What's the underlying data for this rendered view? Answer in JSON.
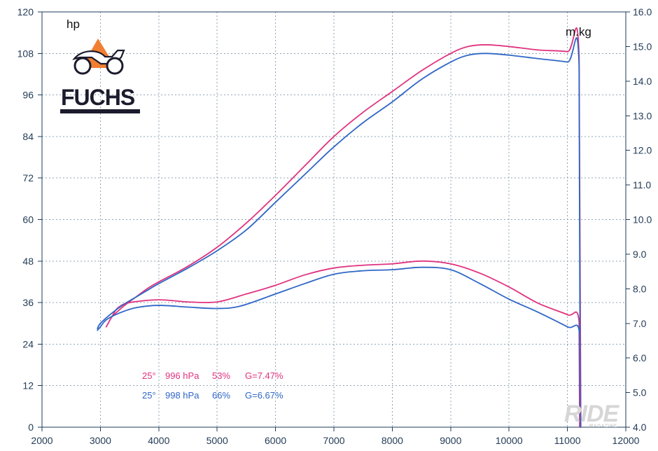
{
  "chart_data": {
    "type": "line",
    "title": "",
    "xlabel": "",
    "ylabel": "hp",
    "y2label": "m.kg",
    "xlim": [
      2000,
      12000
    ],
    "ylim": [
      0,
      120
    ],
    "y2lim": [
      4.0,
      16.0
    ],
    "grid": true,
    "x_ticks": [
      "2000",
      "3000",
      "4000",
      "5000",
      "6000",
      "7000",
      "8000",
      "9000",
      "10000",
      "11000",
      "12000"
    ],
    "y_ticks": [
      "0",
      "12",
      "24",
      "36",
      "48",
      "60",
      "72",
      "84",
      "96",
      "108",
      "120"
    ],
    "y2_ticks": [
      "4.0",
      "5.0",
      "6.0",
      "7.0",
      "8.0",
      "9.0",
      "10.0",
      "11.0",
      "12.0",
      "13.0",
      "14.0",
      "15.0",
      "16.0"
    ],
    "series": [
      {
        "color": "#e0337f",
        "label_parts": [
          "25°",
          "996 hPa",
          "53%",
          "G=7.47%"
        ],
        "power_hp": [
          [
            3200,
            32.0
          ],
          [
            3400,
            35.0
          ],
          [
            3600,
            37.5
          ],
          [
            3800,
            40.0
          ],
          [
            4000,
            42.0
          ],
          [
            4500,
            46.5
          ],
          [
            5000,
            52.0
          ],
          [
            5500,
            59.0
          ],
          [
            6000,
            67.0
          ],
          [
            6500,
            75.5
          ],
          [
            7000,
            84.0
          ],
          [
            7500,
            91.0
          ],
          [
            8000,
            97.0
          ],
          [
            8500,
            103.0
          ],
          [
            9000,
            108.0
          ],
          [
            9300,
            110.0
          ],
          [
            9600,
            110.5
          ],
          [
            10000,
            110.0
          ],
          [
            10500,
            109.0
          ],
          [
            11000,
            108.5
          ],
          [
            11200,
            107.0
          ],
          [
            11230,
            0.0
          ]
        ],
        "torque_mkg": [
          [
            3100,
            6.9
          ],
          [
            3200,
            7.2
          ],
          [
            3300,
            7.45
          ],
          [
            3500,
            7.6
          ],
          [
            4000,
            7.68
          ],
          [
            4500,
            7.62
          ],
          [
            5000,
            7.62
          ],
          [
            5500,
            7.85
          ],
          [
            6000,
            8.1
          ],
          [
            6500,
            8.4
          ],
          [
            7000,
            8.6
          ],
          [
            7500,
            8.68
          ],
          [
            8000,
            8.72
          ],
          [
            8500,
            8.8
          ],
          [
            9000,
            8.72
          ],
          [
            9500,
            8.45
          ],
          [
            10000,
            8.05
          ],
          [
            10500,
            7.58
          ],
          [
            11000,
            7.25
          ],
          [
            11200,
            7.05
          ],
          [
            11210,
            4.0
          ]
        ]
      },
      {
        "color": "#2f67c6",
        "label_parts": [
          "25°",
          "998 hPa",
          "66%",
          "G=6.67%"
        ],
        "power_hp": [
          [
            2950,
            28.5
          ],
          [
            3000,
            30.0
          ],
          [
            3200,
            33.0
          ],
          [
            3400,
            35.5
          ],
          [
            3600,
            37.5
          ],
          [
            3800,
            39.5
          ],
          [
            4000,
            41.5
          ],
          [
            4500,
            46.0
          ],
          [
            5000,
            51.0
          ],
          [
            5500,
            57.0
          ],
          [
            6000,
            65.0
          ],
          [
            6500,
            73.0
          ],
          [
            7000,
            81.0
          ],
          [
            7500,
            88.0
          ],
          [
            8000,
            94.0
          ],
          [
            8500,
            100.5
          ],
          [
            9000,
            105.5
          ],
          [
            9300,
            107.5
          ],
          [
            9600,
            108.0
          ],
          [
            10000,
            107.5
          ],
          [
            10500,
            106.5
          ],
          [
            11000,
            105.5
          ],
          [
            11200,
            104.5
          ],
          [
            11220,
            0.0
          ]
        ],
        "torque_mkg": [
          [
            2950,
            6.8
          ],
          [
            3000,
            6.9
          ],
          [
            3100,
            7.1
          ],
          [
            3300,
            7.28
          ],
          [
            3600,
            7.45
          ],
          [
            4000,
            7.52
          ],
          [
            4500,
            7.47
          ],
          [
            5000,
            7.43
          ],
          [
            5400,
            7.5
          ],
          [
            6000,
            7.85
          ],
          [
            6500,
            8.15
          ],
          [
            7000,
            8.42
          ],
          [
            7500,
            8.52
          ],
          [
            8000,
            8.55
          ],
          [
            8500,
            8.62
          ],
          [
            9000,
            8.55
          ],
          [
            9500,
            8.15
          ],
          [
            10000,
            7.7
          ],
          [
            10500,
            7.32
          ],
          [
            11000,
            6.9
          ],
          [
            11210,
            6.7
          ],
          [
            11220,
            4.0
          ]
        ]
      }
    ]
  },
  "brand": {
    "name": "FUCHS",
    "colors": {
      "logo_orange": "#f07f32",
      "logo_dark": "#1b1b2d"
    }
  },
  "watermark": {
    "name": "RIDE",
    "subtitle": "MAGAZINE"
  }
}
